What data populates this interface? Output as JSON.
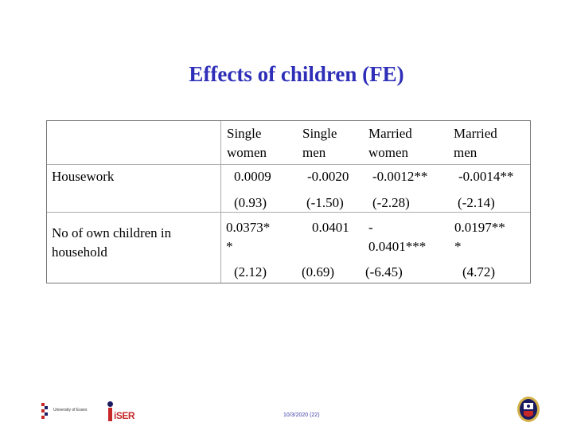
{
  "title": "Effects of children (FE)",
  "table": {
    "headers": [
      "Single\nwomen",
      "Single\nmen",
      "Married\nwomen",
      "Married\nmen"
    ],
    "rows": [
      {
        "label": "Housework",
        "estimates": [
          "0.0009",
          "-0.0020",
          "-0.0012**",
          "-0.0014**"
        ],
        "tstats": [
          "(0.93)",
          "(-1.50)",
          "(-2.28)",
          "(-2.14)"
        ]
      },
      {
        "label": "No of own children in\nhousehold",
        "estimates": [
          "   0.0373*\n*",
          "0.0401",
          "-\n0.0401***",
          "   0.0197**\n*"
        ],
        "tstats": [
          "(2.12)",
          "(0.69)",
          "(-6.45)",
          "(4.72)"
        ]
      }
    ]
  },
  "footer": {
    "date": "10/3/2020 (22)",
    "logo_left": "University of Essex",
    "logo_iser": "iSER"
  },
  "colors": {
    "title": "#2e2eb8",
    "border": "#777777"
  },
  "icons": [
    "university-of-essex-logo",
    "iser-logo",
    "oxford-crest-icon"
  ]
}
